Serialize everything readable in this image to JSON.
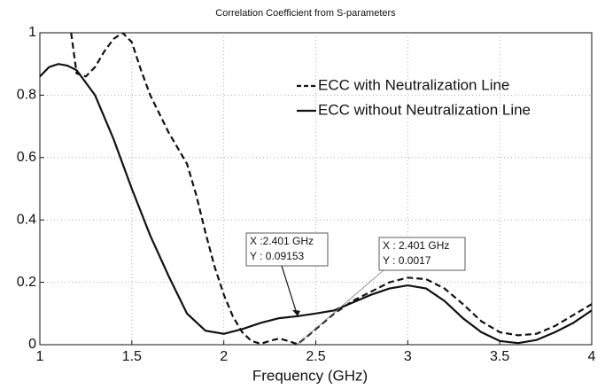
{
  "chart_data": {
    "type": "line",
    "title": "Correlation Coefficient from S-parameters",
    "xlabel": "Frequency (GHz)",
    "xlim": [
      1,
      4
    ],
    "ylim": [
      0,
      1
    ],
    "xticks": [
      1,
      1.5,
      2,
      2.5,
      3,
      3.5,
      4
    ],
    "yticks": [
      0,
      0.2,
      0.4,
      0.6,
      0.8,
      1
    ],
    "grid": true,
    "legend": "upper right",
    "series": [
      {
        "name": "ECC with Neutralization Line",
        "color": "#111111",
        "dash": "dashed",
        "x": [
          1.17,
          1.2,
          1.25,
          1.3,
          1.35,
          1.4,
          1.45,
          1.5,
          1.55,
          1.6,
          1.7,
          1.8,
          1.85,
          1.9,
          1.95,
          2.0,
          2.05,
          2.1,
          2.15,
          2.2,
          2.25,
          2.3,
          2.35,
          2.401,
          2.45,
          2.5,
          2.6,
          2.7,
          2.8,
          2.9,
          3.0,
          3.1,
          3.2,
          3.3,
          3.4,
          3.5,
          3.6,
          3.7,
          3.8,
          3.9,
          4.0
        ],
        "values": [
          1.0,
          0.87,
          0.86,
          0.89,
          0.94,
          0.98,
          1.0,
          0.97,
          0.88,
          0.8,
          0.68,
          0.58,
          0.48,
          0.36,
          0.25,
          0.16,
          0.09,
          0.04,
          0.012,
          0.003,
          0.012,
          0.02,
          0.012,
          0.0017,
          0.025,
          0.05,
          0.1,
          0.14,
          0.17,
          0.2,
          0.215,
          0.21,
          0.18,
          0.13,
          0.075,
          0.04,
          0.03,
          0.035,
          0.06,
          0.095,
          0.13
        ]
      },
      {
        "name": "ECC without Neutralization Line",
        "color": "#111111",
        "dash": "solid",
        "x": [
          1.0,
          1.05,
          1.1,
          1.15,
          1.2,
          1.3,
          1.4,
          1.5,
          1.6,
          1.7,
          1.8,
          1.9,
          2.0,
          2.1,
          2.2,
          2.3,
          2.401,
          2.5,
          2.6,
          2.7,
          2.8,
          2.9,
          3.0,
          3.1,
          3.2,
          3.3,
          3.4,
          3.5,
          3.6,
          3.7,
          3.8,
          3.9,
          4.0
        ],
        "values": [
          0.86,
          0.89,
          0.9,
          0.895,
          0.88,
          0.8,
          0.66,
          0.5,
          0.35,
          0.22,
          0.1,
          0.045,
          0.035,
          0.05,
          0.07,
          0.085,
          0.09153,
          0.1,
          0.11,
          0.135,
          0.16,
          0.18,
          0.19,
          0.18,
          0.14,
          0.085,
          0.04,
          0.012,
          0.005,
          0.015,
          0.04,
          0.07,
          0.11
        ]
      }
    ],
    "annotations": [
      {
        "x": 2.401,
        "y": 0.09153,
        "lines": [
          "X :2.401 GHz",
          "Y : 0.09153"
        ]
      },
      {
        "x": 2.401,
        "y": 0.0017,
        "lines": [
          "X : 2.401 GHz",
          "Y : 0.0017"
        ]
      }
    ]
  }
}
